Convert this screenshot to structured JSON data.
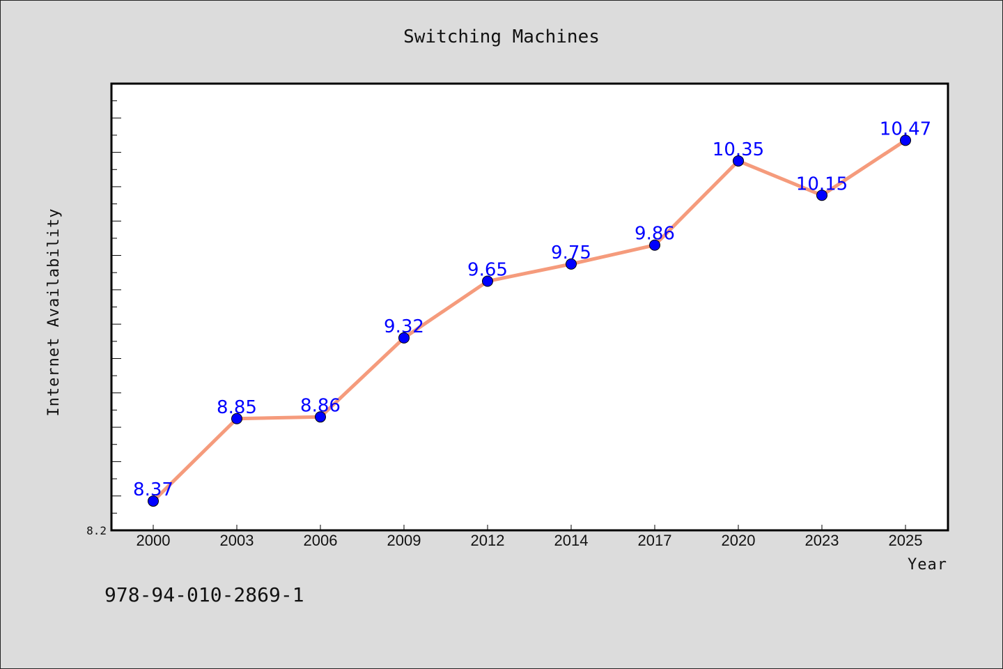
{
  "chart_data": {
    "type": "line",
    "title": "Switching Machines",
    "xlabel": "Year",
    "ylabel": "Internet Availability",
    "categories": [
      "2000",
      "2003",
      "2006",
      "2009",
      "2012",
      "2014",
      "2017",
      "2020",
      "2023",
      "2025"
    ],
    "series": [
      {
        "values": [
          8.37,
          8.85,
          8.86,
          9.32,
          9.65,
          9.75,
          9.86,
          10.35,
          10.15,
          10.47
        ]
      }
    ],
    "ylim": [
      8.2,
      10.8
    ],
    "ytick_labels": [
      "8.2"
    ],
    "grid": false,
    "legend": "none",
    "colors": {
      "line": "#f59b7c",
      "marker": "#0000ff",
      "data_label": "#0000ff",
      "background": "#dcdcdc",
      "plot_area": "#ffffff"
    }
  },
  "footer": {
    "isbn": "978-94-010-2869-1"
  }
}
